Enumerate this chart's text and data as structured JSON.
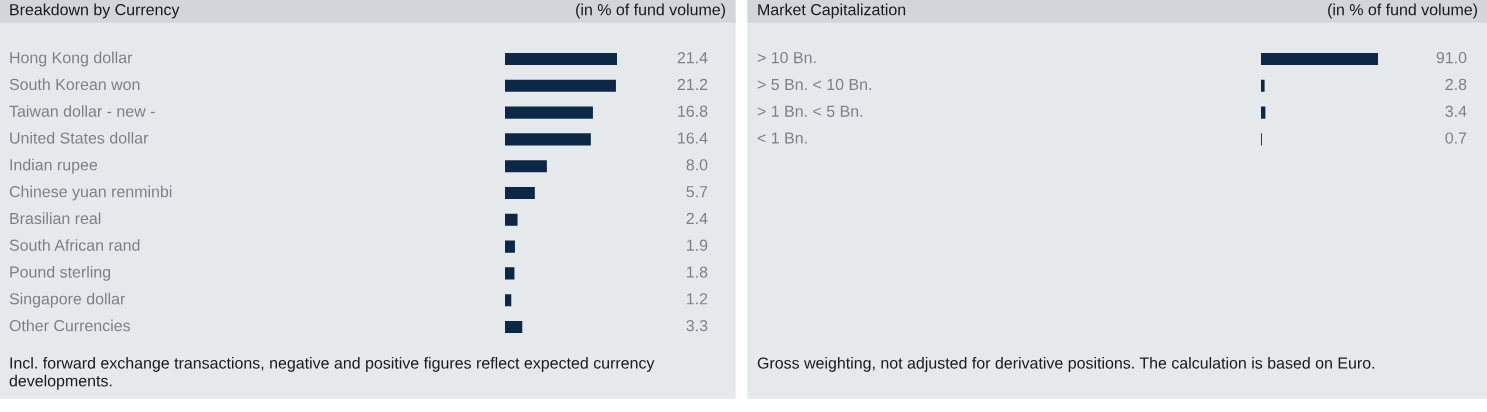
{
  "chart_data": [
    {
      "type": "bar",
      "orientation": "horizontal",
      "title": "Breakdown by Currency",
      "subtitle": "(in % of fund volume)",
      "categories": [
        "Hong Kong dollar",
        "South Korean won",
        "Taiwan dollar - new -",
        "United States dollar",
        "Indian rupee",
        "Chinese yuan renminbi",
        "Brasilian real",
        "South African rand",
        "Pound sterling",
        "Singapore dollar",
        "Other Currencies"
      ],
      "values": [
        21.4,
        21.2,
        16.8,
        16.4,
        8.0,
        5.7,
        2.4,
        1.9,
        1.8,
        1.2,
        3.3
      ],
      "color": "#0b2846",
      "value_labels": [
        "21.4",
        "21.2",
        "16.8",
        "16.4",
        "8.0",
        "5.7",
        "2.4",
        "1.9",
        "1.8",
        "1.2",
        "3.3"
      ],
      "annotations": [
        "Incl. forward exchange transactions, negative and positive figures reflect expected currency developments."
      ]
    },
    {
      "type": "bar",
      "orientation": "horizontal",
      "title": "Market Capitalization",
      "subtitle": "(in % of fund volume)",
      "categories": [
        "> 10 Bn.",
        "> 5 Bn. < 10 Bn.",
        "> 1 Bn. < 5 Bn.",
        "< 1 Bn."
      ],
      "values": [
        91.0,
        2.8,
        3.4,
        0.7
      ],
      "color": "#0b2846",
      "value_labels": [
        "91.0",
        "2.8",
        "3.4",
        "0.7"
      ],
      "annotations": [
        "Gross weighting, not adjusted for derivative positions. The calculation is based on Euro."
      ]
    }
  ]
}
